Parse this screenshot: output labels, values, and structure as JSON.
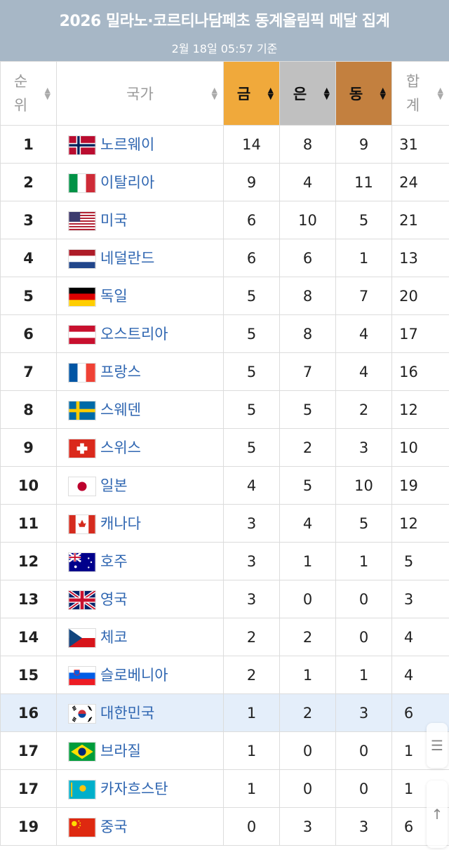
{
  "header": {
    "title": "2026 밀라노·코르티나담페초 동계올림픽 메달 집계",
    "subtitle": "2월 18일 05:57 기준"
  },
  "columns": {
    "rank": "순\n위",
    "country": "국가",
    "gold": "금",
    "silver": "은",
    "bronze": "동",
    "total": "합\n계"
  },
  "colors": {
    "gold": "#f0a93b",
    "silver": "#c0c0c0",
    "bronze": "#c3803f",
    "highlight": "#e4eefa",
    "link": "#2f66b1"
  },
  "rows": [
    {
      "rank": "1",
      "country": "노르웨이",
      "flag": "norway-flag-icon",
      "gold": "14",
      "silver": "8",
      "bronze": "9",
      "total": "31"
    },
    {
      "rank": "2",
      "country": "이탈리아",
      "flag": "italy-flag-icon",
      "gold": "9",
      "silver": "4",
      "bronze": "11",
      "total": "24"
    },
    {
      "rank": "3",
      "country": "미국",
      "flag": "usa-flag-icon",
      "gold": "6",
      "silver": "10",
      "bronze": "5",
      "total": "21"
    },
    {
      "rank": "4",
      "country": "네덜란드",
      "flag": "netherlands-flag-icon",
      "gold": "6",
      "silver": "6",
      "bronze": "1",
      "total": "13"
    },
    {
      "rank": "5",
      "country": "독일",
      "flag": "germany-flag-icon",
      "gold": "5",
      "silver": "8",
      "bronze": "7",
      "total": "20"
    },
    {
      "rank": "6",
      "country": "오스트리아",
      "flag": "austria-flag-icon",
      "gold": "5",
      "silver": "8",
      "bronze": "4",
      "total": "17"
    },
    {
      "rank": "7",
      "country": "프랑스",
      "flag": "france-flag-icon",
      "gold": "5",
      "silver": "7",
      "bronze": "4",
      "total": "16"
    },
    {
      "rank": "8",
      "country": "스웨덴",
      "flag": "sweden-flag-icon",
      "gold": "5",
      "silver": "5",
      "bronze": "2",
      "total": "12"
    },
    {
      "rank": "9",
      "country": "스위스",
      "flag": "switzerland-flag-icon",
      "gold": "5",
      "silver": "2",
      "bronze": "3",
      "total": "10"
    },
    {
      "rank": "10",
      "country": "일본",
      "flag": "japan-flag-icon",
      "gold": "4",
      "silver": "5",
      "bronze": "10",
      "total": "19"
    },
    {
      "rank": "11",
      "country": "캐나다",
      "flag": "canada-flag-icon",
      "gold": "3",
      "silver": "4",
      "bronze": "5",
      "total": "12"
    },
    {
      "rank": "12",
      "country": "호주",
      "flag": "australia-flag-icon",
      "gold": "3",
      "silver": "1",
      "bronze": "1",
      "total": "5"
    },
    {
      "rank": "13",
      "country": "영국",
      "flag": "uk-flag-icon",
      "gold": "3",
      "silver": "0",
      "bronze": "0",
      "total": "3"
    },
    {
      "rank": "14",
      "country": "체코",
      "flag": "czechia-flag-icon",
      "gold": "2",
      "silver": "2",
      "bronze": "0",
      "total": "4"
    },
    {
      "rank": "15",
      "country": "슬로베니아",
      "flag": "slovenia-flag-icon",
      "gold": "2",
      "silver": "1",
      "bronze": "1",
      "total": "4"
    },
    {
      "rank": "16",
      "country": "대한민국",
      "flag": "korea-flag-icon",
      "gold": "1",
      "silver": "2",
      "bronze": "3",
      "total": "6",
      "highlighted": true
    },
    {
      "rank": "17",
      "country": "브라질",
      "flag": "brazil-flag-icon",
      "gold": "1",
      "silver": "0",
      "bronze": "0",
      "total": "1"
    },
    {
      "rank": "17",
      "country": "카자흐스탄",
      "flag": "kazakhstan-flag-icon",
      "gold": "1",
      "silver": "0",
      "bronze": "0",
      "total": "1"
    },
    {
      "rank": "19",
      "country": "중국",
      "flag": "china-flag-icon",
      "gold": "0",
      "silver": "3",
      "bronze": "3",
      "total": "6"
    }
  ],
  "fabs": {
    "toc": "list-icon",
    "top": "arrow-up-icon"
  }
}
